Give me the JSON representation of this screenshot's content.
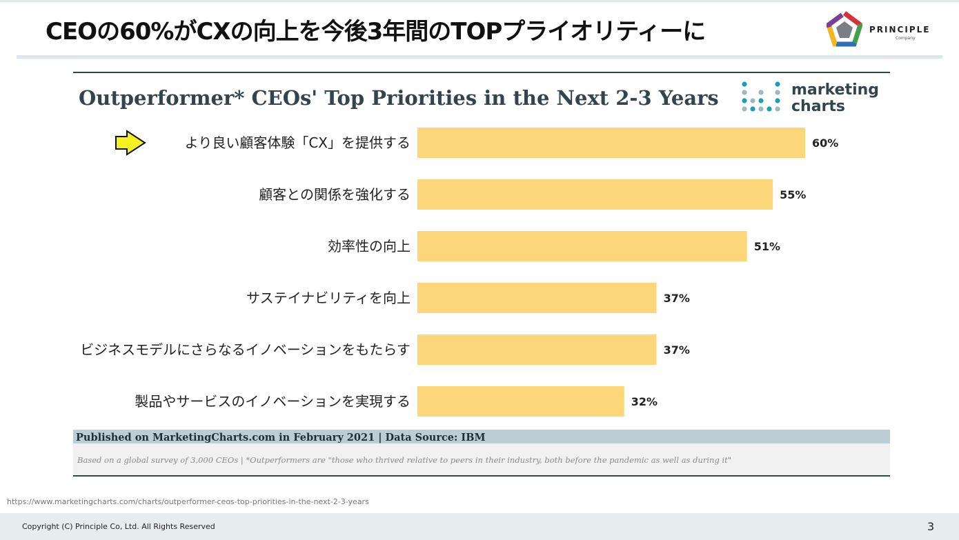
{
  "slide": {
    "title": "CEOの60%がCXの向上を今後3年間のTOPプライオリティーに",
    "logo_name": "PRINCIPLE",
    "logo_sub": "Company",
    "source_url": "https://www.marketingcharts.com/charts/outperformer-ceos-top-priorities-in-the-next-2-3-years",
    "copyright": "Copyright (C) Principle Co, Ltd. All Rights Reserved",
    "page_number": "3"
  },
  "chart_brand": {
    "line1": "marketing",
    "line2": "charts"
  },
  "chart_data": {
    "type": "bar",
    "orientation": "horizontal",
    "title": "Outperformer* CEOs' Top Priorities in the Next 2-3 Years",
    "categories": [
      "より良い顧客体験「CX」を提供する",
      "顧客との関係を強化する",
      "効率性の向上",
      "サステイナビリティを向上",
      "ビジネスモデルにさらなるイノベーションをもたらす",
      "製品やサービスのイノベーションを実現する"
    ],
    "values": [
      60,
      55,
      51,
      37,
      37,
      32
    ],
    "value_labels": [
      "60%",
      "55%",
      "51%",
      "37%",
      "37%",
      "32%"
    ],
    "highlighted_index": 0,
    "bar_color": "#fdd67a",
    "grid": false,
    "footer_publication": "Published on MarketingCharts.com in February 2021 | Data Source: IBM",
    "footer_note": "Based on a global survey of 3,000 CEOs | *Outperformers are \"those who thrived relative to peers in their industry, both before the pandemic as well as during it\""
  },
  "colors": {
    "bar": "#fdd67a",
    "arrow": "#f5f21f",
    "chart_text": "#33454c",
    "publication_band": "#bccdd5",
    "note_band": "#f1f1f1",
    "dot_teal": "#1a9fb4",
    "dot_grey": "#9fb7bf"
  }
}
